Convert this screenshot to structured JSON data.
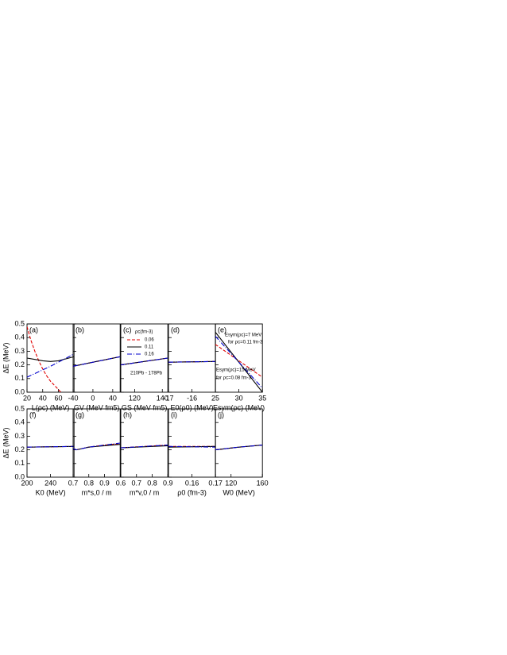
{
  "chart_data": [
    {
      "type": "line",
      "panel_label": "(a)",
      "xlabel": "L(ρc) (MeV)",
      "ylabel": "ΔE (MeV)",
      "xlim": [
        20,
        80
      ],
      "xticks": [
        20,
        40,
        60
      ],
      "ylim": [
        0,
        0.5
      ],
      "yticks": [
        {
          "value": 0,
          "label": "0.0"
        },
        0.1,
        0.2,
        0.3,
        0.4,
        0.5
      ],
      "series": [
        {
          "color": "#e00000",
          "style": "dashed",
          "x": [
            20,
            25,
            30,
            35,
            40,
            45,
            50,
            55,
            60,
            63
          ],
          "values": [
            0.48,
            0.38,
            0.3,
            0.23,
            0.17,
            0.12,
            0.08,
            0.05,
            0.02,
            0.0
          ]
        },
        {
          "color": "#000000",
          "style": "solid",
          "x": [
            20,
            30,
            40,
            50,
            60,
            70,
            80
          ],
          "values": [
            0.25,
            0.24,
            0.23,
            0.225,
            0.23,
            0.245,
            0.26
          ]
        },
        {
          "color": "#0000cc",
          "style": "dashdot",
          "x": [
            20,
            50,
            80
          ],
          "values": [
            0.11,
            0.19,
            0.28
          ]
        }
      ]
    },
    {
      "type": "line",
      "panel_label": "(b)",
      "xlabel": "GV (MeV fm5)",
      "xlim": [
        -40,
        55
      ],
      "xticks": [
        -40,
        0,
        40
      ],
      "ylim": [
        0,
        0.5
      ],
      "yticks": [
        0,
        0.1,
        0.2,
        0.3,
        0.4,
        0.5
      ],
      "series": [
        {
          "color": "#e00000",
          "style": "dashed",
          "x": [
            -40,
            55
          ],
          "values": [
            0.19,
            0.26
          ]
        },
        {
          "color": "#000000",
          "style": "solid",
          "x": [
            -40,
            55
          ],
          "values": [
            0.19,
            0.26
          ]
        },
        {
          "color": "#0000cc",
          "style": "dashdot",
          "x": [
            -40,
            55
          ],
          "values": [
            0.19,
            0.26
          ]
        }
      ]
    },
    {
      "type": "line",
      "panel_label": "(c)",
      "xlabel": "GS (MeV fm5)",
      "xlim": [
        110,
        144
      ],
      "xticks": [
        120,
        140
      ],
      "ylim": [
        0,
        0.5
      ],
      "yticks": [
        0,
        0.1,
        0.2,
        0.3,
        0.4,
        0.5
      ],
      "legend_title": "ρc(fm-3)",
      "annotations": [
        {
          "text": "210Pb - 178Pb",
          "color": "#000000"
        }
      ],
      "series": [
        {
          "name": "0.06",
          "color": "#e00000",
          "style": "dashed",
          "x": [
            110,
            144
          ],
          "values": [
            0.2,
            0.25
          ]
        },
        {
          "name": "0.11",
          "color": "#000000",
          "style": "solid",
          "x": [
            110,
            144
          ],
          "values": [
            0.2,
            0.25
          ]
        },
        {
          "name": "0.16",
          "color": "#0000cc",
          "style": "dashdot",
          "x": [
            110,
            144
          ],
          "values": [
            0.2,
            0.25
          ]
        }
      ]
    },
    {
      "type": "line",
      "panel_label": "(d)",
      "xlabel": "E0(ρ0) (MeV)",
      "xlim": [
        -17,
        -15
      ],
      "xticks": [
        -17,
        -16
      ],
      "ylim": [
        0,
        0.5
      ],
      "yticks": [
        0,
        0.1,
        0.2,
        0.3,
        0.4,
        0.5
      ],
      "series": [
        {
          "color": "#e00000",
          "style": "dashed",
          "x": [
            -17,
            -15
          ],
          "values": [
            0.22,
            0.225
          ]
        },
        {
          "color": "#000000",
          "style": "solid",
          "x": [
            -17,
            -15
          ],
          "values": [
            0.22,
            0.225
          ]
        },
        {
          "color": "#0000cc",
          "style": "dashdot",
          "x": [
            -17,
            -15
          ],
          "values": [
            0.22,
            0.225
          ]
        }
      ]
    },
    {
      "type": "line",
      "panel_label": "(e)",
      "xlabel": "Esym(ρc) (MeV)",
      "xlim": [
        25,
        35
      ],
      "xticks": [
        25,
        30,
        35
      ],
      "ylim": [
        0,
        0.5
      ],
      "yticks": [
        0,
        0.1,
        0.2,
        0.3,
        0.4,
        0.5
      ],
      "annotations": [
        {
          "text": "Esym(ρc)=7 MeV",
          "color": "#000000"
        },
        {
          "text": "for ρc=0.11 fm-3",
          "color": "#000000"
        },
        {
          "text": "Esym(ρc)=15 MeV",
          "color": "#e00000"
        },
        {
          "text": "for ρc=0.08 fm-3",
          "color": "#e00000"
        }
      ],
      "series": [
        {
          "color": "#e00000",
          "style": "dashed",
          "x": [
            25,
            30,
            35
          ],
          "values": [
            0.35,
            0.23,
            0.11
          ]
        },
        {
          "color": "#000000",
          "style": "solid",
          "x": [
            25,
            35
          ],
          "values": [
            0.44,
            0.0
          ]
        },
        {
          "color": "#0000cc",
          "style": "dashdot",
          "x": [
            25,
            35
          ],
          "values": [
            0.41,
            0.03
          ]
        }
      ]
    },
    {
      "type": "line",
      "panel_label": "(f)",
      "xlabel": "K0 (MeV)",
      "ylabel": "ΔE (MeV)",
      "xlim": [
        200,
        280
      ],
      "xticks": [
        200,
        240
      ],
      "ylim": [
        0,
        0.5
      ],
      "yticks": [
        {
          "value": 0,
          "label": "0.0"
        },
        0.1,
        0.2,
        0.3,
        0.4,
        0.5
      ],
      "series": [
        {
          "color": "#e00000",
          "style": "dashed",
          "x": [
            200,
            280
          ],
          "values": [
            0.22,
            0.225
          ]
        },
        {
          "color": "#000000",
          "style": "solid",
          "x": [
            200,
            280
          ],
          "values": [
            0.22,
            0.225
          ]
        },
        {
          "color": "#0000cc",
          "style": "dashdot",
          "x": [
            200,
            280
          ],
          "values": [
            0.22,
            0.225
          ]
        }
      ]
    },
    {
      "type": "line",
      "panel_label": "(g)",
      "xlabel": "m*s,0 / m",
      "xlim": [
        0.7,
        1.0
      ],
      "xticks": [
        0.7,
        0.8,
        0.9
      ],
      "ylim": [
        0,
        0.5
      ],
      "yticks": [
        0,
        0.1,
        0.2,
        0.3,
        0.4,
        0.5
      ],
      "series": [
        {
          "color": "#e00000",
          "style": "dashed",
          "x": [
            0.7,
            0.72,
            0.8,
            0.9,
            1.0
          ],
          "values": [
            0.21,
            0.2,
            0.22,
            0.235,
            0.245
          ]
        },
        {
          "color": "#000000",
          "style": "solid",
          "x": [
            0.7,
            0.72,
            0.8,
            0.9,
            1.0
          ],
          "values": [
            0.21,
            0.2,
            0.22,
            0.23,
            0.24
          ]
        },
        {
          "color": "#0000cc",
          "style": "dashdot",
          "x": [
            0.7,
            0.72,
            0.8,
            0.9,
            1.0
          ],
          "values": [
            0.21,
            0.2,
            0.22,
            0.235,
            0.25
          ]
        }
      ]
    },
    {
      "type": "line",
      "panel_label": "(h)",
      "xlabel": "m*v,0 / m",
      "xlim": [
        0.6,
        0.9
      ],
      "xticks": [
        0.6,
        0.7,
        0.8,
        0.9
      ],
      "ylim": [
        0,
        0.5
      ],
      "yticks": [
        0,
        0.1,
        0.2,
        0.3,
        0.4,
        0.5
      ],
      "series": [
        {
          "color": "#e00000",
          "style": "dashed",
          "x": [
            0.6,
            0.9
          ],
          "values": [
            0.215,
            0.235
          ]
        },
        {
          "color": "#000000",
          "style": "solid",
          "x": [
            0.6,
            0.9
          ],
          "values": [
            0.215,
            0.23
          ]
        },
        {
          "color": "#0000cc",
          "style": "dashdot",
          "x": [
            0.6,
            0.9
          ],
          "values": [
            0.215,
            0.235
          ]
        }
      ]
    },
    {
      "type": "line",
      "panel_label": "(i)",
      "xlabel": "ρ0 (fm-3)",
      "xlim": [
        0.15,
        0.17
      ],
      "xticks": [
        0.16,
        0.17
      ],
      "ylim": [
        0,
        0.5
      ],
      "yticks": [
        0,
        0.1,
        0.2,
        0.3,
        0.4,
        0.5
      ],
      "series": [
        {
          "color": "#e00000",
          "style": "dashed",
          "x": [
            0.15,
            0.17
          ],
          "values": [
            0.225,
            0.225
          ]
        },
        {
          "color": "#000000",
          "style": "solid",
          "x": [
            0.15,
            0.17
          ],
          "values": [
            0.22,
            0.225
          ]
        },
        {
          "color": "#0000cc",
          "style": "dashdot",
          "x": [
            0.15,
            0.17
          ],
          "values": [
            0.225,
            0.22
          ]
        }
      ]
    },
    {
      "type": "line",
      "panel_label": "(j)",
      "xlabel": "W0 (MeV)",
      "xlim": [
        100,
        160
      ],
      "xticks": [
        120,
        160
      ],
      "ylim": [
        0,
        0.5
      ],
      "yticks": [
        0,
        0.1,
        0.2,
        0.3,
        0.4,
        0.5
      ],
      "series": [
        {
          "color": "#e00000",
          "style": "dashed",
          "x": [
            100,
            130,
            160
          ],
          "values": [
            0.2,
            0.22,
            0.235
          ]
        },
        {
          "color": "#000000",
          "style": "solid",
          "x": [
            100,
            130,
            160
          ],
          "values": [
            0.2,
            0.22,
            0.235
          ]
        },
        {
          "color": "#0000cc",
          "style": "dashdot",
          "x": [
            100,
            130,
            160
          ],
          "values": [
            0.2,
            0.22,
            0.235
          ]
        }
      ]
    }
  ]
}
